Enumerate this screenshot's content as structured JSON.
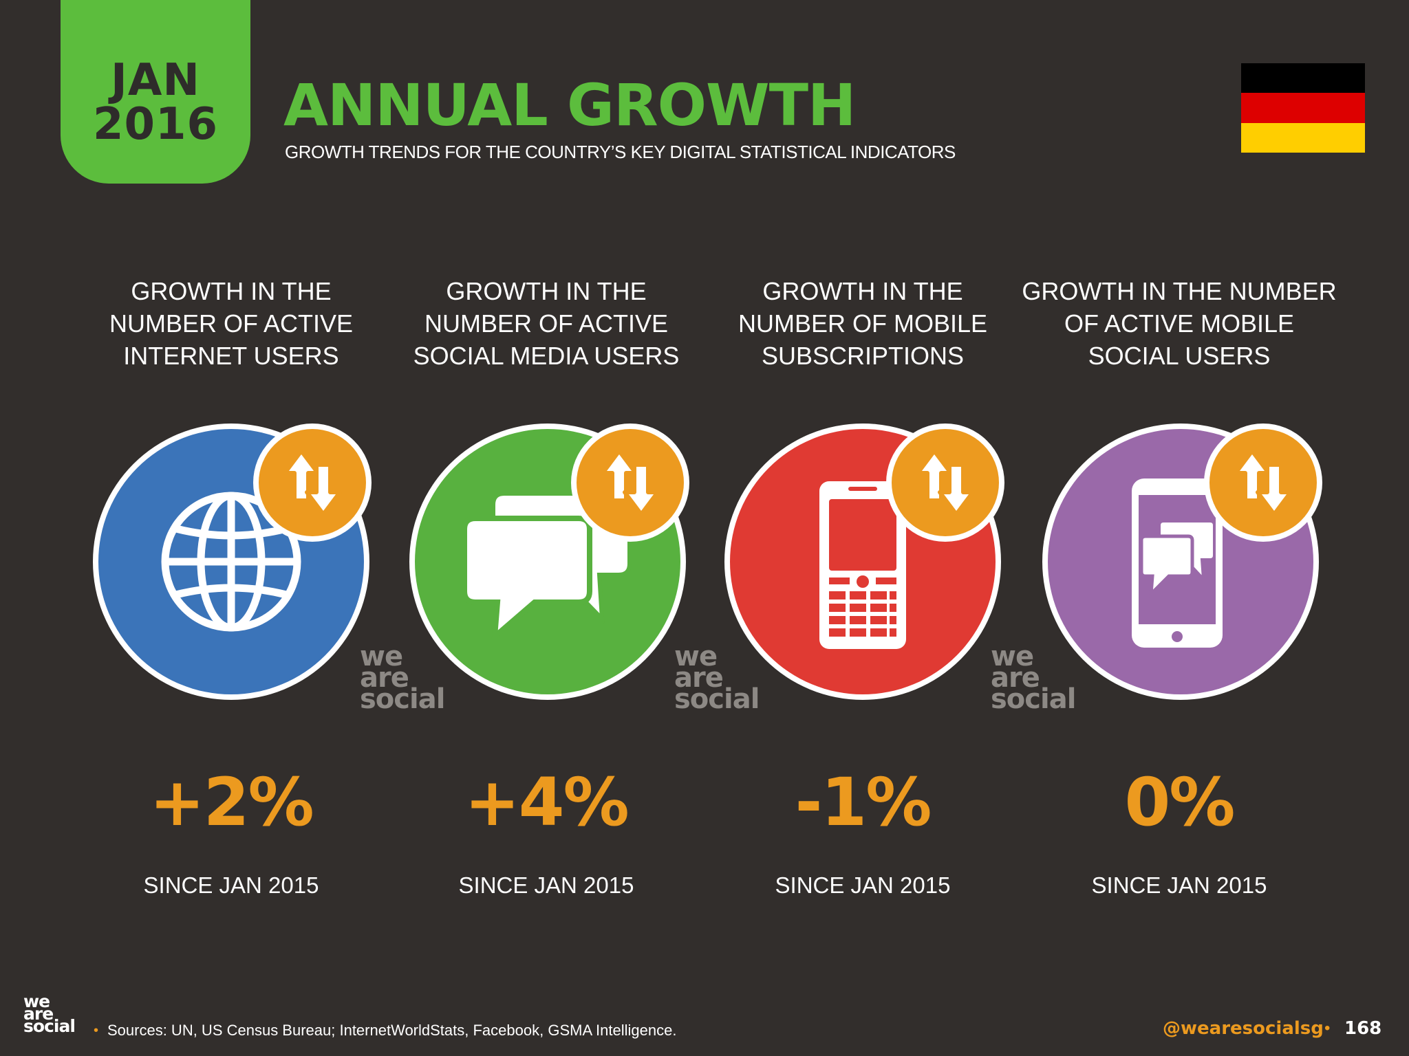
{
  "header": {
    "date_month": "JAN",
    "date_year": "2016",
    "title": "ANNUAL GROWTH",
    "subtitle": "GROWTH TRENDS FOR THE COUNTRY’S KEY DIGITAL STATISTICAL INDICATORS",
    "flag_colors": [
      "#000000",
      "#dd0000",
      "#ffce00"
    ]
  },
  "metrics": [
    {
      "heading": "GROWTH IN THE\nNUMBER OF ACTIVE\nINTERNET USERS",
      "icon": "globe-icon",
      "color": "#3b74b9",
      "value": "+2%",
      "since": "SINCE JAN 2015"
    },
    {
      "heading": "GROWTH IN THE\nNUMBER OF ACTIVE\nSOCIAL MEDIA USERS",
      "icon": "chat-bubbles-icon",
      "color": "#58b13f",
      "value": "+4%",
      "since": "SINCE JAN 2015"
    },
    {
      "heading": "GROWTH IN THE\nNUMBER OF MOBILE\nSUBSCRIPTIONS",
      "icon": "mobile-phone-icon",
      "color": "#e03a33",
      "value": "-1%",
      "since": "SINCE JAN 2015"
    },
    {
      "heading": "GROWTH IN THE NUMBER\nOF ACTIVE MOBILE\nSOCIAL USERS",
      "icon": "smartphone-chat-icon",
      "color": "#9a69a9",
      "value": "0%",
      "since": "SINCE JAN 2015"
    }
  ],
  "badge_icon": "up-down-arrows-icon",
  "badge_color": "#ec9a1f",
  "watermark": [
    "we",
    "are",
    "social"
  ],
  "footer": {
    "logo": [
      "we",
      "are",
      "social"
    ],
    "sources": "Sources: UN, US Census Bureau; InternetWorldStats, Facebook, GSMA Intelligence.",
    "handle": "@wearesocialsg",
    "page_number": "168"
  }
}
